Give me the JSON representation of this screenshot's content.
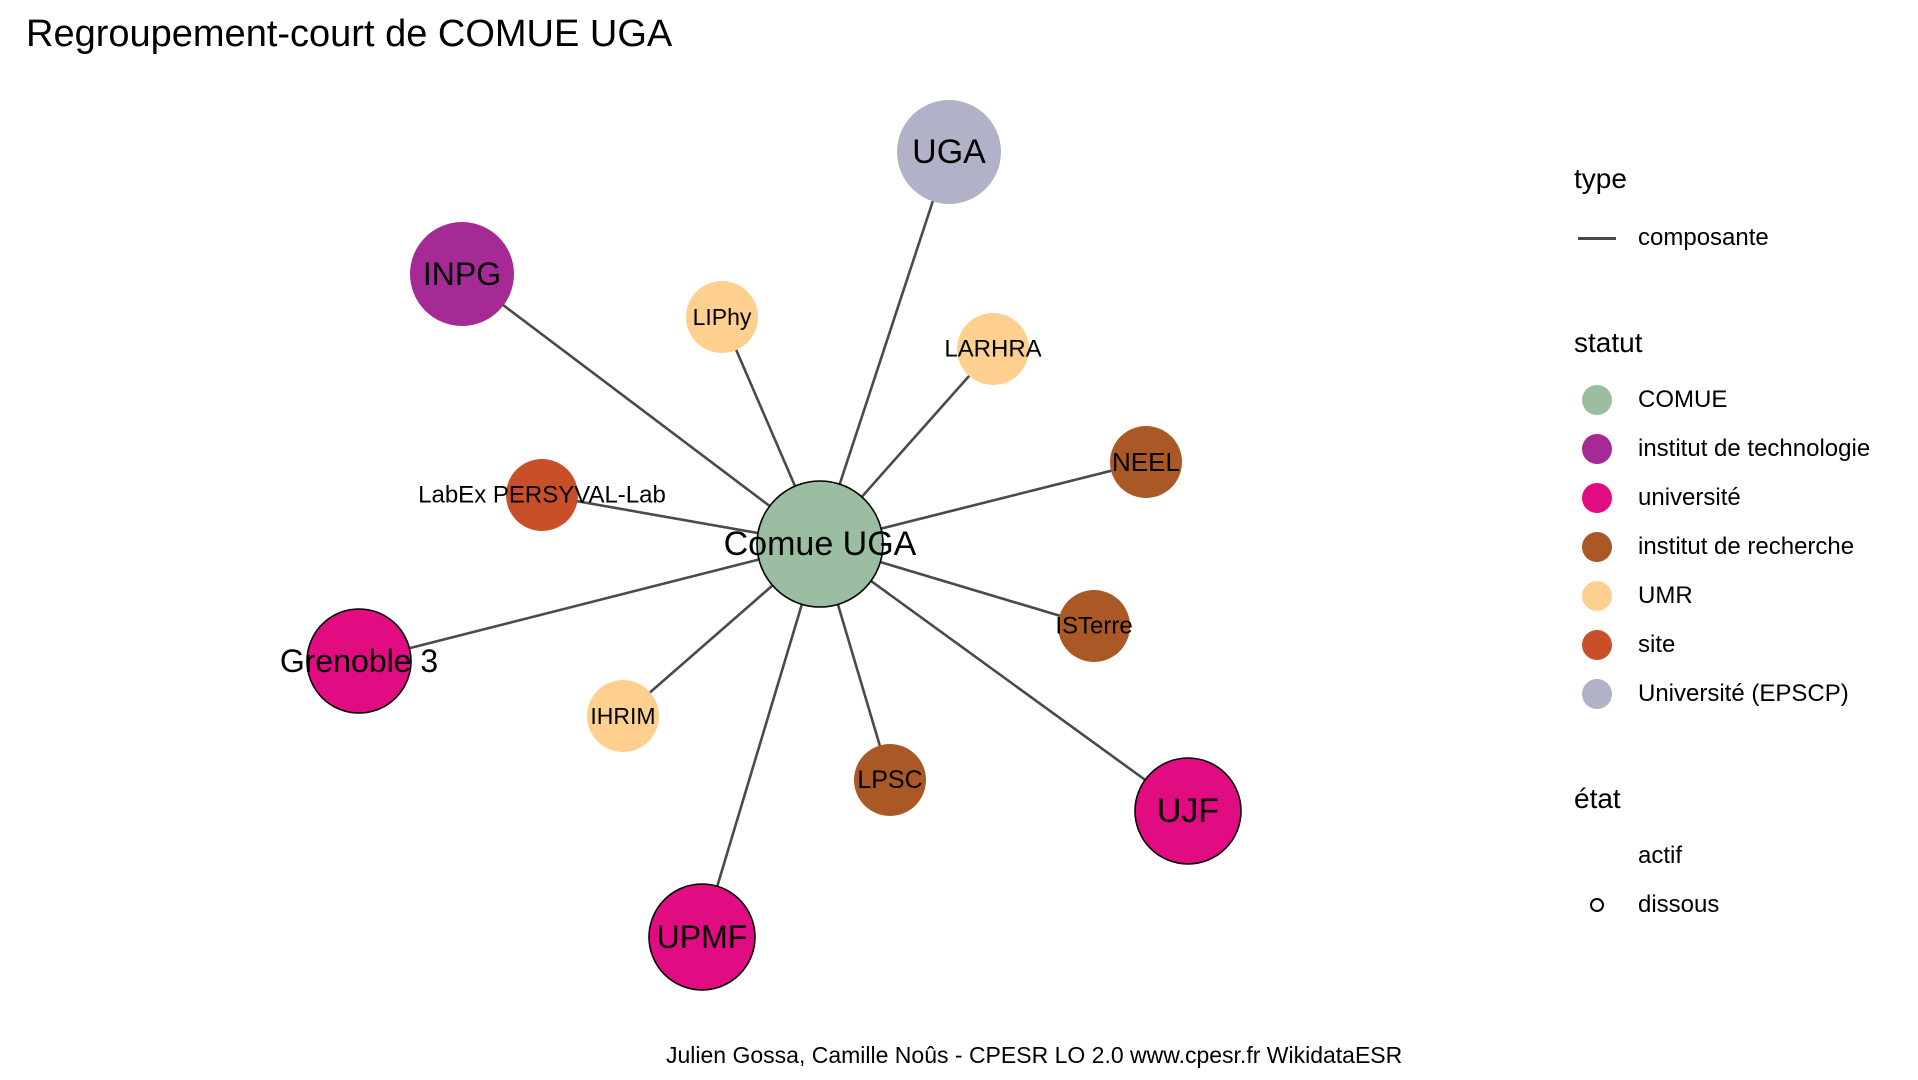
{
  "title": "Regroupement-court de COMUE UGA",
  "caption": "Julien Gossa, Camille Noûs - CPESR LO 2.0 www.cpesr.fr WikidataESR",
  "colors": {
    "COMUE": "#9bbda2",
    "institut de technologie": "#a62a95",
    "université": "#e10b82",
    "institut de recherche": "#a95826",
    "UMR": "#fdd08f",
    "site": "#c84f28",
    "Université (EPSCP)": "#b1b2c7",
    "edge": "#4a4a4a"
  },
  "graph": {
    "center": {
      "id": "comue",
      "label": "Comue UGA",
      "statut": "COMUE",
      "etat": "dissous"
    },
    "nodes": [
      {
        "id": "uga",
        "label": "UGA",
        "statut": "Université (EPSCP)",
        "etat": "actif"
      },
      {
        "id": "inpg",
        "label": "INPG",
        "statut": "institut de technologie",
        "etat": "actif"
      },
      {
        "id": "liphy",
        "label": "LIPhy",
        "statut": "UMR",
        "etat": "actif"
      },
      {
        "id": "larhra",
        "label": "LARHRA",
        "statut": "UMR",
        "etat": "actif"
      },
      {
        "id": "neel",
        "label": "NEEL",
        "statut": "institut de recherche",
        "etat": "actif"
      },
      {
        "id": "persyval",
        "label": "LabEx PERSYVAL-Lab",
        "statut": "site",
        "etat": "actif"
      },
      {
        "id": "isterre",
        "label": "ISTerre",
        "statut": "institut de recherche",
        "etat": "actif"
      },
      {
        "id": "grenoble3",
        "label": "Grenoble 3",
        "statut": "université",
        "etat": "dissous"
      },
      {
        "id": "ihrim",
        "label": "IHRIM",
        "statut": "UMR",
        "etat": "actif"
      },
      {
        "id": "lpsc",
        "label": "LPSC",
        "statut": "institut de recherche",
        "etat": "actif"
      },
      {
        "id": "ujf",
        "label": "UJF",
        "statut": "université",
        "etat": "dissous"
      },
      {
        "id": "upmf",
        "label": "UPMF",
        "statut": "université",
        "etat": "dissous"
      }
    ],
    "edges": [
      {
        "from": "comue",
        "to": "uga",
        "type": "composante"
      },
      {
        "from": "comue",
        "to": "inpg",
        "type": "composante"
      },
      {
        "from": "comue",
        "to": "liphy",
        "type": "composante"
      },
      {
        "from": "comue",
        "to": "larhra",
        "type": "composante"
      },
      {
        "from": "comue",
        "to": "neel",
        "type": "composante"
      },
      {
        "from": "comue",
        "to": "persyval",
        "type": "composante"
      },
      {
        "from": "comue",
        "to": "isterre",
        "type": "composante"
      },
      {
        "from": "comue",
        "to": "grenoble3",
        "type": "composante"
      },
      {
        "from": "comue",
        "to": "ihrim",
        "type": "composante"
      },
      {
        "from": "comue",
        "to": "lpsc",
        "type": "composante"
      },
      {
        "from": "comue",
        "to": "ujf",
        "type": "composante"
      },
      {
        "from": "comue",
        "to": "upmf",
        "type": "composante"
      }
    ]
  },
  "legend": {
    "type": {
      "title": "type",
      "items": [
        {
          "label": "composante",
          "key": "line"
        }
      ]
    },
    "statut": {
      "title": "statut",
      "items": [
        {
          "label": "COMUE",
          "color": "#9bbda2"
        },
        {
          "label": "institut de technologie",
          "color": "#a62a95"
        },
        {
          "label": "université",
          "color": "#e10b82"
        },
        {
          "label": "institut de recherche",
          "color": "#a95826"
        },
        {
          "label": "UMR",
          "color": "#fdd08f"
        },
        {
          "label": "site",
          "color": "#c84f28"
        },
        {
          "label": "Université (EPSCP)",
          "color": "#b1b2c7"
        }
      ]
    },
    "etat": {
      "title": "état",
      "items": [
        {
          "label": "actif",
          "key": "none"
        },
        {
          "label": "dissous",
          "key": "ring"
        }
      ]
    }
  }
}
